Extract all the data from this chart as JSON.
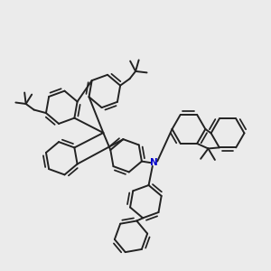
{
  "background_color": "#ebebeb",
  "line_color": "#222222",
  "nitrogen_color": "#0000cc",
  "line_width": 1.4,
  "figsize": [
    3.0,
    3.0
  ],
  "dpi": 100,
  "xlim": [
    0,
    10
  ],
  "ylim": [
    0,
    10
  ]
}
